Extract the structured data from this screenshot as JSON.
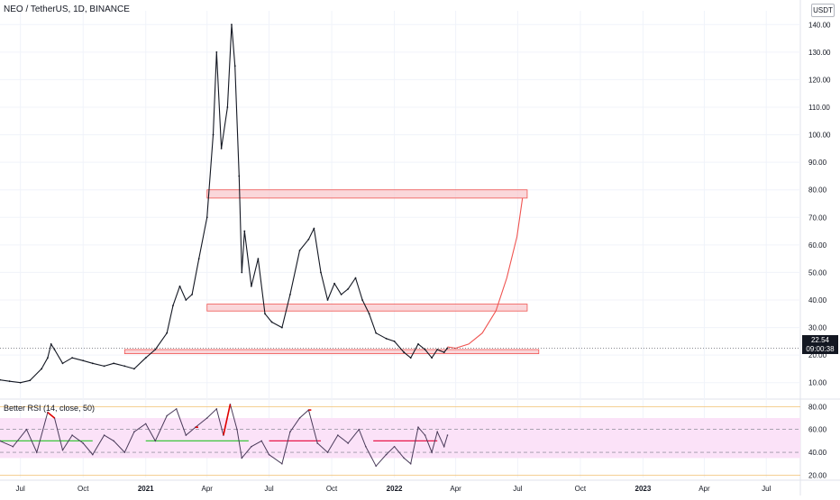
{
  "header": {
    "title": "NEO / TetherUS, 1D, BINANCE",
    "currency": "USDT"
  },
  "rsi": {
    "label": "Better RSI (14, close, 50)"
  },
  "price_badge": {
    "price": "22.54",
    "countdown": "09:00:38"
  },
  "colors": {
    "candle": "#131722",
    "zone_fill": "#f8c9cd",
    "zone_stroke": "#ef5350",
    "curve": "#ef5350",
    "rsi_line": "#4a3b5a",
    "rsi_band": "#fbe2f8",
    "rsi_hot": "#e00000",
    "rsi_green": "#3cc53c",
    "rsi_red_level": "#e8174a"
  },
  "chart_data": [
    {
      "type": "line",
      "title": "NEO / TetherUS, 1D, BINANCE",
      "series": [
        {
          "name": "",
          "points": [
            [
              "2020-06-01",
              11
            ],
            [
              "2020-06-15",
              10.5
            ],
            [
              "2020-07-01",
              10
            ],
            [
              "2020-07-15",
              10.8
            ],
            [
              "2020-08-01",
              15
            ],
            [
              "2020-08-10",
              19
            ],
            [
              "2020-08-15",
              24
            ],
            [
              "2020-08-20",
              22
            ],
            [
              "2020-09-01",
              17
            ],
            [
              "2020-09-15",
              19
            ],
            [
              "2020-10-01",
              18
            ],
            [
              "2020-10-15",
              17
            ],
            [
              "2020-11-01",
              16
            ],
            [
              "2020-11-15",
              17
            ],
            [
              "2020-12-01",
              16
            ],
            [
              "2020-12-15",
              15
            ],
            [
              "2021-01-01",
              19
            ],
            [
              "2021-01-15",
              22
            ],
            [
              "2021-02-01",
              28
            ],
            [
              "2021-02-10",
              38
            ],
            [
              "2021-02-20",
              45
            ],
            [
              "2021-03-01",
              40
            ],
            [
              "2021-03-10",
              42
            ],
            [
              "2021-03-20",
              55
            ],
            [
              "2021-04-01",
              70
            ],
            [
              "2021-04-10",
              100
            ],
            [
              "2021-04-15",
              130
            ],
            [
              "2021-04-22",
              95
            ],
            [
              "2021-05-01",
              110
            ],
            [
              "2021-05-07",
              140
            ],
            [
              "2021-05-12",
              125
            ],
            [
              "2021-05-18",
              85
            ],
            [
              "2021-05-22",
              50
            ],
            [
              "2021-05-26",
              65
            ],
            [
              "2021-06-05",
              45
            ],
            [
              "2021-06-15",
              55
            ],
            [
              "2021-06-25",
              35
            ],
            [
              "2021-07-05",
              32
            ],
            [
              "2021-07-20",
              30
            ],
            [
              "2021-08-01",
              42
            ],
            [
              "2021-08-15",
              58
            ],
            [
              "2021-08-28",
              62
            ],
            [
              "2021-09-05",
              66
            ],
            [
              "2021-09-15",
              50
            ],
            [
              "2021-09-25",
              40
            ],
            [
              "2021-10-05",
              46
            ],
            [
              "2021-10-15",
              42
            ],
            [
              "2021-10-25",
              44
            ],
            [
              "2021-11-05",
              48
            ],
            [
              "2021-11-15",
              40
            ],
            [
              "2021-11-25",
              35
            ],
            [
              "2021-12-05",
              28
            ],
            [
              "2021-12-20",
              26
            ],
            [
              "2022-01-01",
              25
            ],
            [
              "2022-01-15",
              21
            ],
            [
              "2022-01-25",
              19
            ],
            [
              "2022-02-05",
              24
            ],
            [
              "2022-02-15",
              22
            ],
            [
              "2022-02-25",
              19
            ],
            [
              "2022-03-05",
              22
            ],
            [
              "2022-03-15",
              21
            ],
            [
              "2022-03-20",
              22.54
            ]
          ]
        },
        {
          "name": "",
          "points": [
            [
              "2022-03-20",
              23
            ],
            [
              "2022-04-01",
              22.5
            ],
            [
              "2022-04-20",
              24
            ],
            [
              "2022-05-10",
              28
            ],
            [
              "2022-05-30",
              36
            ],
            [
              "2022-06-15",
              48
            ],
            [
              "2022-06-30",
              63
            ],
            [
              "2022-07-08",
              77
            ]
          ]
        }
      ],
      "zones": [
        {
          "x0": "2021-04-01",
          "x1": "2022-07-15",
          "y0": 77,
          "y1": 80
        },
        {
          "x0": "2021-04-01",
          "x1": "2022-07-15",
          "y0": 36,
          "y1": 38.5
        },
        {
          "x0": "2020-12-01",
          "x1": "2022-08-01",
          "y0": 20.5,
          "y1": 22
        }
      ],
      "y_ticks": [
        "10.00",
        "20.00",
        "30.00",
        "40.00",
        "50.00",
        "60.00",
        "70.00",
        "80.00",
        "90.00",
        "100.00",
        "110.00",
        "120.00",
        "130.00",
        "140.00"
      ],
      "x_ticks": [
        "Jul",
        "Oct",
        "2021",
        "Apr",
        "Jul",
        "Oct",
        "2022",
        "Apr",
        "Jul",
        "Oct",
        "2023",
        "Apr",
        "Jul"
      ],
      "xlim": [
        "2020-06-01",
        "2023-08-20"
      ],
      "ylim": [
        5,
        145
      ],
      "grid": true
    },
    {
      "type": "line",
      "title": "Better RSI (14, close, 50)",
      "series": [
        {
          "name": "",
          "points": [
            [
              "2020-06-01",
              50
            ],
            [
              "2020-06-20",
              45
            ],
            [
              "2020-07-10",
              60
            ],
            [
              "2020-07-25",
              40
            ],
            [
              "2020-08-10",
              75
            ],
            [
              "2020-08-20",
              70
            ],
            [
              "2020-09-01",
              42
            ],
            [
              "2020-09-15",
              55
            ],
            [
              "2020-10-01",
              48
            ],
            [
              "2020-10-15",
              38
            ],
            [
              "2020-11-01",
              55
            ],
            [
              "2020-11-15",
              50
            ],
            [
              "2020-12-01",
              40
            ],
            [
              "2020-12-15",
              58
            ],
            [
              "2021-01-01",
              65
            ],
            [
              "2021-01-15",
              50
            ],
            [
              "2021-02-01",
              72
            ],
            [
              "2021-02-15",
              78
            ],
            [
              "2021-03-01",
              55
            ],
            [
              "2021-03-15",
              62
            ],
            [
              "2021-04-01",
              70
            ],
            [
              "2021-04-15",
              78
            ],
            [
              "2021-04-25",
              55
            ],
            [
              "2021-05-05",
              82
            ],
            [
              "2021-05-15",
              60
            ],
            [
              "2021-05-22",
              35
            ],
            [
              "2021-06-05",
              45
            ],
            [
              "2021-06-20",
              50
            ],
            [
              "2021-07-01",
              38
            ],
            [
              "2021-07-20",
              30
            ],
            [
              "2021-08-01",
              58
            ],
            [
              "2021-08-15",
              70
            ],
            [
              "2021-08-28",
              77
            ],
            [
              "2021-09-10",
              48
            ],
            [
              "2021-09-25",
              40
            ],
            [
              "2021-10-10",
              55
            ],
            [
              "2021-10-25",
              48
            ],
            [
              "2021-11-10",
              60
            ],
            [
              "2021-11-20",
              45
            ],
            [
              "2021-12-05",
              28
            ],
            [
              "2021-12-20",
              38
            ],
            [
              "2022-01-01",
              45
            ],
            [
              "2022-01-15",
              35
            ],
            [
              "2022-01-25",
              30
            ],
            [
              "2022-02-05",
              62
            ],
            [
              "2022-02-15",
              55
            ],
            [
              "2022-02-25",
              40
            ],
            [
              "2022-03-05",
              58
            ],
            [
              "2022-03-15",
              45
            ],
            [
              "2022-03-20",
              55
            ]
          ]
        }
      ],
      "hot_segments": [
        {
          "from": "2021-03-10",
          "to": "2021-03-20"
        },
        {
          "from": "2021-04-20",
          "to": "2021-05-10"
        },
        {
          "from": "2021-08-20",
          "to": "2021-09-05"
        },
        {
          "from": "2020-08-05",
          "to": "2020-08-25"
        }
      ],
      "levels": [
        {
          "x0": "2020-06-01",
          "x1": "2020-10-15",
          "y": 50,
          "color": "green"
        },
        {
          "x0": "2021-01-01",
          "x1": "2021-06-01",
          "y": 50,
          "color": "green"
        },
        {
          "x0": "2021-07-01",
          "x1": "2021-09-15",
          "y": 50,
          "color": "red"
        },
        {
          "x0": "2021-12-01",
          "x1": "2022-03-05",
          "y": 50,
          "color": "red"
        }
      ],
      "band": [
        35,
        70
      ],
      "y_ticks": [
        "20.00",
        "40.00",
        "60.00",
        "80.00"
      ],
      "ylim": [
        18,
        85
      ],
      "grid": true
    }
  ]
}
